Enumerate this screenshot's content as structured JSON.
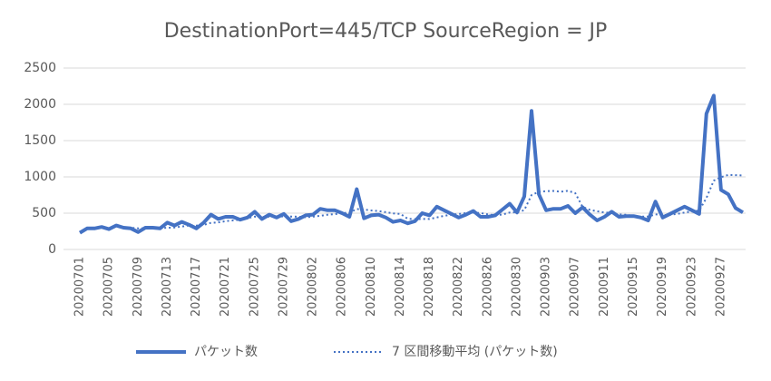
{
  "chart_data": {
    "type": "line",
    "title": "DestinationPort=445/TCP SourceRegion = JP",
    "categories": [
      "20200701",
      null,
      null,
      null,
      "20200705",
      null,
      null,
      null,
      "20200709",
      null,
      null,
      null,
      "20200713",
      null,
      null,
      null,
      "20200717",
      null,
      null,
      null,
      "20200721",
      null,
      null,
      null,
      "20200725",
      null,
      null,
      null,
      "20200729",
      null,
      null,
      null,
      "20200802",
      null,
      null,
      null,
      "20200806",
      null,
      null,
      null,
      "20200810",
      null,
      null,
      null,
      "20200814",
      null,
      null,
      null,
      "20200818",
      null,
      null,
      null,
      "20200822",
      null,
      null,
      null,
      "20200826",
      null,
      null,
      null,
      "20200830",
      null,
      null,
      null,
      "20200903",
      null,
      null,
      null,
      "20200907",
      null,
      null,
      null,
      "20200911",
      null,
      null,
      null,
      "20200915",
      null,
      null,
      null,
      "20200919",
      null,
      null,
      null,
      "20200923",
      null,
      null,
      null,
      "20200927",
      null,
      null,
      null
    ],
    "series": [
      {
        "name": "パケット数",
        "color": "#4472c4",
        "style": "solid",
        "values": [
          230,
          290,
          290,
          310,
          280,
          330,
          300,
          290,
          240,
          300,
          300,
          290,
          370,
          330,
          380,
          340,
          290,
          370,
          480,
          420,
          450,
          450,
          410,
          440,
          520,
          420,
          480,
          440,
          490,
          390,
          420,
          470,
          480,
          560,
          540,
          540,
          500,
          450,
          830,
          430,
          470,
          480,
          440,
          380,
          400,
          360,
          390,
          500,
          470,
          590,
          540,
          490,
          440,
          480,
          530,
          450,
          450,
          470,
          550,
          630,
          510,
          730,
          1910,
          760,
          540,
          560,
          560,
          600,
          500,
          580,
          480,
          400,
          450,
          520,
          450,
          460,
          460,
          440,
          400,
          660,
          440,
          490,
          540,
          590,
          540,
          490,
          1870,
          2120,
          820,
          760,
          570,
          510
        ]
      },
      {
        "name": "7 区間移動平均 (パケット数)",
        "color": "#4472c4",
        "style": "dotted",
        "values": [
          null,
          null,
          null,
          null,
          null,
          null,
          290,
          299,
          291,
          293,
          291,
          293,
          299,
          303,
          316,
          330,
          329,
          339,
          366,
          373,
          390,
          400,
          410,
          431,
          453,
          444,
          453,
          451,
          457,
          454,
          451,
          444,
          453,
          464,
          479,
          486,
          501,
          506,
          557,
          550,
          537,
          529,
          514,
          497,
          490,
          423,
          417,
          421,
          420,
          441,
          464,
          477,
          489,
          501,
          506,
          503,
          483,
          473,
          481,
          509,
          513,
          541,
          750,
          794,
          804,
          806,
          796,
          809,
          776,
          586,
          546,
          526,
          510,
          504,
          483,
          477,
          460,
          454,
          454,
          484,
          473,
          479,
          490,
          509,
          523,
          536,
          709,
          949,
          996,
          1027,
          1024,
          1020
        ]
      }
    ],
    "ylim": [
      0,
      2500
    ],
    "yticks": [
      0,
      500,
      1000,
      1500,
      2000,
      2500
    ],
    "grid": true,
    "legend": "bottom"
  }
}
